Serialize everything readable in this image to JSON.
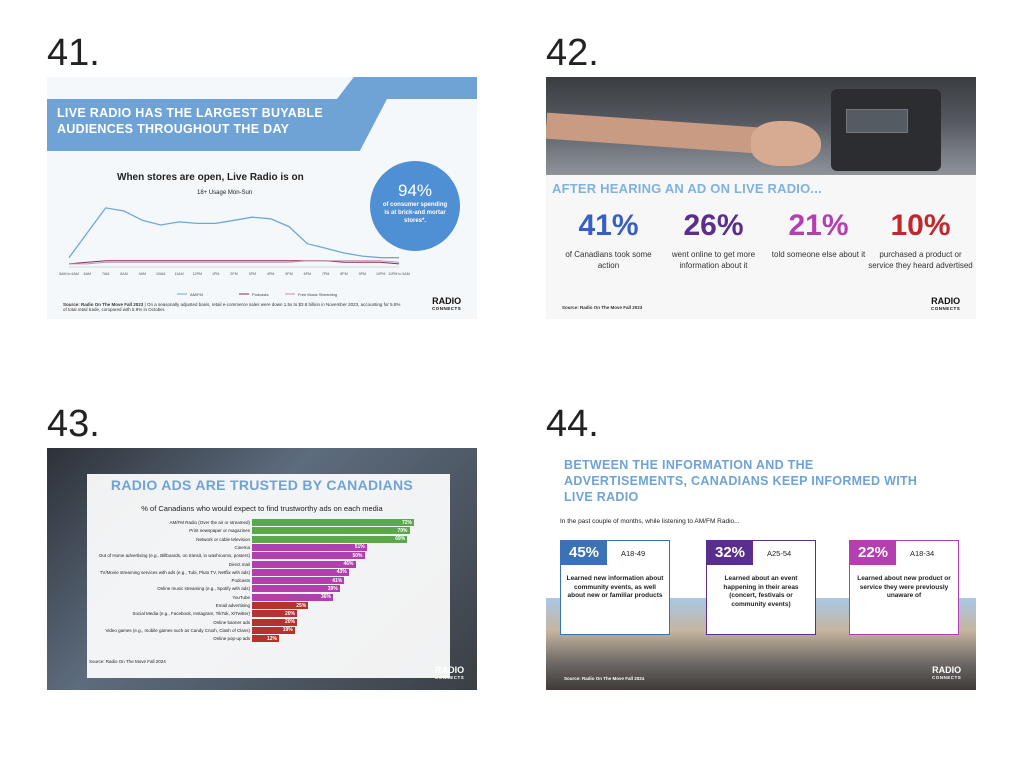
{
  "slides": [
    {
      "number": "41.",
      "banner": "LIVE RADIO HAS THE LARGEST BUYABLE AUDIENCES THROUGHOUT THE DAY",
      "subtitle": "When stores are open, Live Radio is on",
      "chart_subtitle": "18+ Usage Mon-Sun",
      "callout_pct": "94%",
      "callout_text": "of consumer spending is at brick-and mortar stores*.",
      "source": "Source: Radio On The Move Fall 2023",
      "footnote": "| On a seasonally adjusted basis, retail e-commerce sales were down 1.5x to $3.8 billion in November 2023, accounting for 5.8% of total retail trade, compared with 5.9% in October.",
      "logo_line1": "RADIO",
      "logo_line2": "CONNECTS"
    },
    {
      "number": "42.",
      "heading": "AFTER HEARING AN AD ON LIVE RADIO...",
      "stats": [
        {
          "value": "41%",
          "text": "of Canadians took some action",
          "color": "#3a5fc2"
        },
        {
          "value": "26%",
          "text": "went online to get more information about it",
          "color": "#5a2e8c"
        },
        {
          "value": "21%",
          "text": "told someone else about it",
          "color": "#b43fb0"
        },
        {
          "value": "10%",
          "text": "purchased a product or service they heard advertised",
          "color": "#c0282d"
        }
      ],
      "source": "Source: Radio On The Move Fall 2023",
      "logo_line1": "RADIO",
      "logo_line2": "CONNECTS"
    },
    {
      "number": "43.",
      "title": "RADIO ADS ARE TRUSTED BY CANADIANS",
      "source": "Source: Radio On The Move Fall 2024",
      "logo_line1": "RADIO",
      "logo_line2": "CONNECTS"
    },
    {
      "number": "44.",
      "heading": "BETWEEN THE INFORMATION AND THE ADVERTISEMENTS, CANADIANS KEEP INFORMED WITH LIVE RADIO",
      "intro": "In the past couple of months, while listening to AM/FM Radio...",
      "cards": [
        {
          "value": "45%",
          "age": "A18-49",
          "text": "Learned new information about community events, as well about new or familiar products",
          "color": "#3a72b5"
        },
        {
          "value": "32%",
          "age": "A25-54",
          "text": "Learned about an event happening in their areas (concert, festivals or community events)",
          "color": "#5a2e8c"
        },
        {
          "value": "22%",
          "age": "A18-34",
          "text": "Learned about new product or service they were previously unaware of",
          "color": "#b43fb0"
        }
      ],
      "source": "Source: Radio On The Move Fall 2024",
      "logo_line1": "RADIO",
      "logo_line2": "CONNECTS"
    }
  ],
  "chart_data": [
    {
      "type": "line",
      "title": "When stores are open, Live Radio is on",
      "subtitle": "18+ Usage Mon-Sun",
      "x": [
        "5AM to 6AM",
        "6AM",
        "7AM",
        "8AM",
        "9AM",
        "10AM",
        "11AM",
        "12PM",
        "1PM",
        "2PM",
        "3PM",
        "4PM",
        "5PM",
        "6PM",
        "7PM",
        "8PM",
        "9PM",
        "10PM",
        "11PM to 5AM"
      ],
      "series": [
        {
          "name": "AM/FM",
          "color": "#6fa7d8",
          "values": [
            6,
            22,
            38,
            36,
            30,
            27,
            29,
            28,
            28,
            30,
            32,
            31,
            26,
            15,
            12,
            9,
            7,
            6,
            6
          ]
        },
        {
          "name": "Podcasts",
          "color": "#8c2b57",
          "values": [
            2,
            3,
            4,
            4,
            4,
            4,
            4,
            4,
            4,
            4,
            4,
            4,
            4,
            4,
            4,
            3,
            3,
            3,
            2
          ]
        },
        {
          "name": "Free Music Streaming",
          "color": "#c990ad",
          "values": [
            2,
            2,
            3,
            3,
            3,
            3,
            3,
            3,
            3,
            3,
            3,
            3,
            3,
            4,
            4,
            4,
            4,
            4,
            3
          ]
        }
      ],
      "ylim": [
        0,
        45
      ],
      "grid": false,
      "legend": "bottom"
    },
    {
      "type": "bar",
      "orientation": "horizontal",
      "title": "% of Canadians who would expect to find trustworthy ads on each media",
      "categories": [
        "AM/FM Radio (Over the air or streamed)",
        "Print newspaper or magazines",
        "Network or cable television",
        "Cinema",
        "Out of Home advertising (e.g., Billboards, on transit, in washrooms, posters)",
        "Direct mail",
        "TV/Movie streaming services with ads (e.g., Tubi, Pluto TV, Netflix with ads)",
        "Podcasts",
        "Online music streaming (e.g., Spotify with ads)",
        "YouTube",
        "Email advertising",
        "Social Media (e.g., Facebook, Instagram, TikTok, X/Twitter)",
        "Online banner ads",
        "Video games (e.g., mobile games such as Candy Crush, Clash of Clans)",
        "Online pop-up ads"
      ],
      "values": [
        72,
        70,
        69,
        51,
        50,
        46,
        43,
        41,
        39,
        36,
        25,
        20,
        20,
        19,
        12
      ],
      "labels": [
        "72%",
        "70%",
        "69%",
        "51%",
        "50%",
        "46%",
        "43%",
        "41%",
        "39%",
        "36%",
        "25%",
        "20%",
        "20%",
        "19%",
        "12%"
      ],
      "colors": [
        "#5aa84a",
        "#5aa84a",
        "#5aa84a",
        "#b13fae",
        "#b13fae",
        "#b13fae",
        "#b13fae",
        "#b13fae",
        "#b13fae",
        "#b13fae",
        "#b5322f",
        "#b5322f",
        "#b5322f",
        "#b5322f",
        "#b5322f"
      ],
      "xlim": [
        0,
        80
      ]
    }
  ]
}
